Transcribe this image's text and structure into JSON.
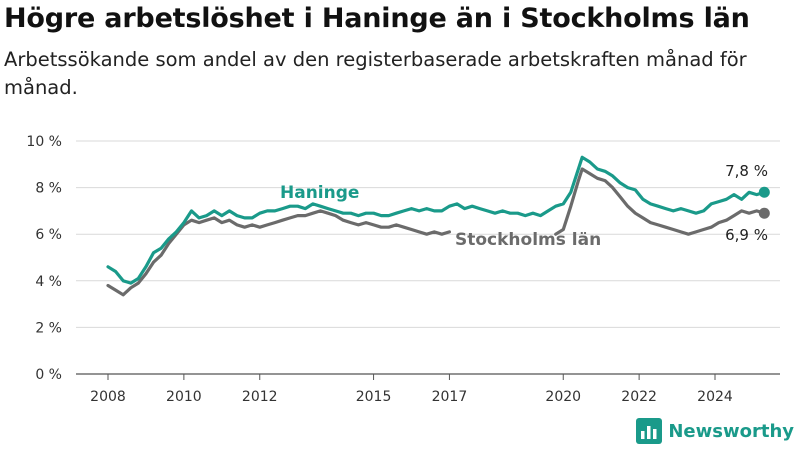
{
  "header": {
    "title": "Högre arbetslöshet i Haninge än i Stockholms län",
    "subtitle": "Arbetssökande som andel av den registerbaserade arbetskraften månad för månad."
  },
  "brand": {
    "name": "Newsworthy",
    "icon": "bar-chart-logo-icon",
    "color": "#1a9a8a"
  },
  "chart_data": {
    "type": "line",
    "xlim": [
      2008,
      2025.5
    ],
    "ylim": [
      0,
      10
    ],
    "x_ticks": [
      2008,
      2010,
      2012,
      2015,
      2017,
      2020,
      2022,
      2024
    ],
    "x_tick_labels": [
      "2008",
      "2010",
      "2012",
      "2015",
      "2017",
      "2020",
      "2022",
      "2024"
    ],
    "y_ticks": [
      0,
      2,
      4,
      6,
      8,
      10
    ],
    "y_tick_labels": [
      "0 %",
      "2 %",
      "4 %",
      "6 %",
      "8 %",
      "10 %"
    ],
    "grid": true,
    "series": [
      {
        "name": "Haninge",
        "color": "#1a9a8a",
        "end_label": "7,8 %",
        "points": [
          [
            2008.0,
            4.6
          ],
          [
            2008.2,
            4.4
          ],
          [
            2008.4,
            4.0
          ],
          [
            2008.6,
            3.9
          ],
          [
            2008.8,
            4.1
          ],
          [
            2009.0,
            4.6
          ],
          [
            2009.2,
            5.2
          ],
          [
            2009.4,
            5.4
          ],
          [
            2009.6,
            5.8
          ],
          [
            2009.8,
            6.1
          ],
          [
            2010.0,
            6.5
          ],
          [
            2010.2,
            7.0
          ],
          [
            2010.4,
            6.7
          ],
          [
            2010.6,
            6.8
          ],
          [
            2010.8,
            7.0
          ],
          [
            2011.0,
            6.8
          ],
          [
            2011.2,
            7.0
          ],
          [
            2011.4,
            6.8
          ],
          [
            2011.6,
            6.7
          ],
          [
            2011.8,
            6.7
          ],
          [
            2012.0,
            6.9
          ],
          [
            2012.2,
            7.0
          ],
          [
            2012.4,
            7.0
          ],
          [
            2012.6,
            7.1
          ],
          [
            2012.8,
            7.2
          ],
          [
            2013.0,
            7.2
          ],
          [
            2013.2,
            7.1
          ],
          [
            2013.4,
            7.3
          ],
          [
            2013.6,
            7.2
          ],
          [
            2013.8,
            7.1
          ],
          [
            2014.0,
            7.0
          ],
          [
            2014.2,
            6.9
          ],
          [
            2014.4,
            6.9
          ],
          [
            2014.6,
            6.8
          ],
          [
            2014.8,
            6.9
          ],
          [
            2015.0,
            6.9
          ],
          [
            2015.2,
            6.8
          ],
          [
            2015.4,
            6.8
          ],
          [
            2015.6,
            6.9
          ],
          [
            2015.8,
            7.0
          ],
          [
            2016.0,
            7.1
          ],
          [
            2016.2,
            7.0
          ],
          [
            2016.4,
            7.1
          ],
          [
            2016.6,
            7.0
          ],
          [
            2016.8,
            7.0
          ],
          [
            2017.0,
            7.2
          ],
          [
            2017.2,
            7.3
          ],
          [
            2017.4,
            7.1
          ],
          [
            2017.6,
            7.2
          ],
          [
            2017.8,
            7.1
          ],
          [
            2018.0,
            7.0
          ],
          [
            2018.2,
            6.9
          ],
          [
            2018.4,
            7.0
          ],
          [
            2018.6,
            6.9
          ],
          [
            2018.8,
            6.9
          ],
          [
            2019.0,
            6.8
          ],
          [
            2019.2,
            6.9
          ],
          [
            2019.4,
            6.8
          ],
          [
            2019.6,
            7.0
          ],
          [
            2019.8,
            7.2
          ],
          [
            2020.0,
            7.3
          ],
          [
            2020.2,
            7.8
          ],
          [
            2020.4,
            8.8
          ],
          [
            2020.5,
            9.3
          ],
          [
            2020.7,
            9.1
          ],
          [
            2020.9,
            8.8
          ],
          [
            2021.1,
            8.7
          ],
          [
            2021.3,
            8.5
          ],
          [
            2021.5,
            8.2
          ],
          [
            2021.7,
            8.0
          ],
          [
            2021.9,
            7.9
          ],
          [
            2022.1,
            7.5
          ],
          [
            2022.3,
            7.3
          ],
          [
            2022.5,
            7.2
          ],
          [
            2022.7,
            7.1
          ],
          [
            2022.9,
            7.0
          ],
          [
            2023.1,
            7.1
          ],
          [
            2023.3,
            7.0
          ],
          [
            2023.5,
            6.9
          ],
          [
            2023.7,
            7.0
          ],
          [
            2023.9,
            7.3
          ],
          [
            2024.1,
            7.4
          ],
          [
            2024.3,
            7.5
          ],
          [
            2024.5,
            7.7
          ],
          [
            2024.7,
            7.5
          ],
          [
            2024.9,
            7.8
          ],
          [
            2025.1,
            7.7
          ],
          [
            2025.3,
            7.8
          ]
        ]
      },
      {
        "name": "Stockholms län",
        "color": "#6b6b6b",
        "end_label": "6,9 %",
        "points": [
          [
            2008.0,
            3.8
          ],
          [
            2008.2,
            3.6
          ],
          [
            2008.4,
            3.4
          ],
          [
            2008.6,
            3.7
          ],
          [
            2008.8,
            3.9
          ],
          [
            2009.0,
            4.3
          ],
          [
            2009.2,
            4.8
          ],
          [
            2009.4,
            5.1
          ],
          [
            2009.6,
            5.6
          ],
          [
            2009.8,
            6.0
          ],
          [
            2010.0,
            6.4
          ],
          [
            2010.2,
            6.6
          ],
          [
            2010.4,
            6.5
          ],
          [
            2010.6,
            6.6
          ],
          [
            2010.8,
            6.7
          ],
          [
            2011.0,
            6.5
          ],
          [
            2011.2,
            6.6
          ],
          [
            2011.4,
            6.4
          ],
          [
            2011.6,
            6.3
          ],
          [
            2011.8,
            6.4
          ],
          [
            2012.0,
            6.3
          ],
          [
            2012.2,
            6.4
          ],
          [
            2012.4,
            6.5
          ],
          [
            2012.6,
            6.6
          ],
          [
            2012.8,
            6.7
          ],
          [
            2013.0,
            6.8
          ],
          [
            2013.2,
            6.8
          ],
          [
            2013.4,
            6.9
          ],
          [
            2013.6,
            7.0
          ],
          [
            2013.8,
            6.9
          ],
          [
            2014.0,
            6.8
          ],
          [
            2014.2,
            6.6
          ],
          [
            2014.4,
            6.5
          ],
          [
            2014.6,
            6.4
          ],
          [
            2014.8,
            6.5
          ],
          [
            2015.0,
            6.4
          ],
          [
            2015.2,
            6.3
          ],
          [
            2015.4,
            6.3
          ],
          [
            2015.6,
            6.4
          ],
          [
            2015.8,
            6.3
          ],
          [
            2016.0,
            6.2
          ],
          [
            2016.2,
            6.1
          ],
          [
            2016.4,
            6.0
          ],
          [
            2016.6,
            6.1
          ],
          [
            2016.8,
            6.0
          ],
          [
            2017.0,
            6.1
          ],
          [
            2019.8,
            6.0
          ],
          [
            2020.0,
            6.2
          ],
          [
            2020.2,
            7.2
          ],
          [
            2020.4,
            8.3
          ],
          [
            2020.5,
            8.8
          ],
          [
            2020.7,
            8.6
          ],
          [
            2020.9,
            8.4
          ],
          [
            2021.1,
            8.3
          ],
          [
            2021.3,
            8.0
          ],
          [
            2021.5,
            7.6
          ],
          [
            2021.7,
            7.2
          ],
          [
            2021.9,
            6.9
          ],
          [
            2022.1,
            6.7
          ],
          [
            2022.3,
            6.5
          ],
          [
            2022.5,
            6.4
          ],
          [
            2022.7,
            6.3
          ],
          [
            2022.9,
            6.2
          ],
          [
            2023.1,
            6.1
          ],
          [
            2023.3,
            6.0
          ],
          [
            2023.5,
            6.1
          ],
          [
            2023.7,
            6.2
          ],
          [
            2023.9,
            6.3
          ],
          [
            2024.1,
            6.5
          ],
          [
            2024.3,
            6.6
          ],
          [
            2024.5,
            6.8
          ],
          [
            2024.7,
            7.0
          ],
          [
            2024.9,
            6.9
          ],
          [
            2025.1,
            7.0
          ],
          [
            2025.3,
            6.9
          ]
        ]
      }
    ]
  }
}
